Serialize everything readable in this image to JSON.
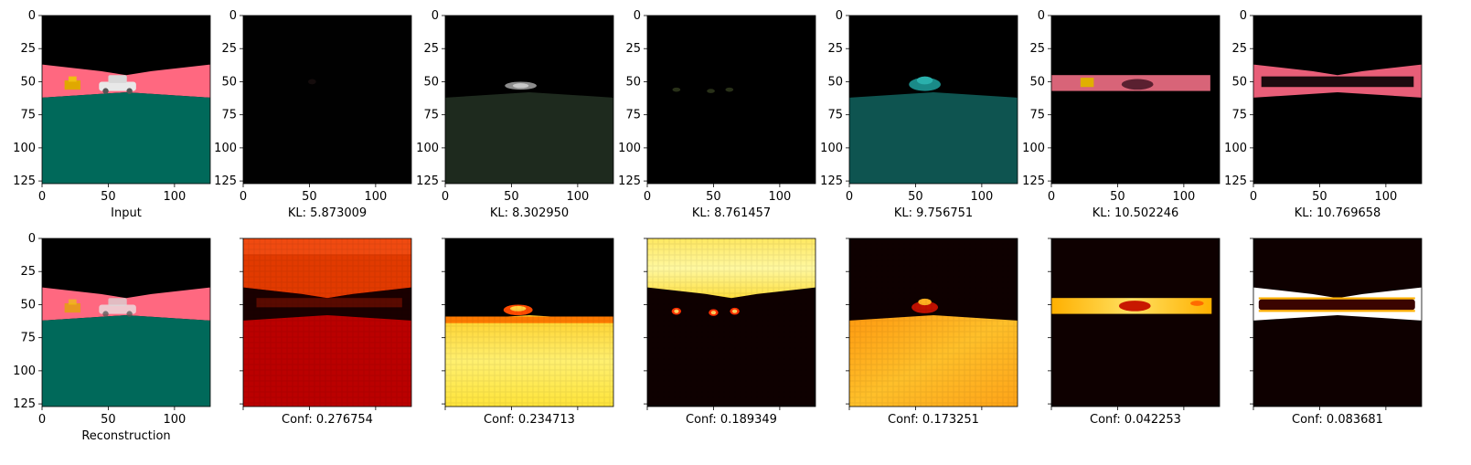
{
  "chart_data": {
    "type": "image-grid",
    "grid": {
      "rows": 2,
      "cols": 7
    },
    "axes": {
      "xlim": [
        0,
        127
      ],
      "ylim": [
        127,
        0
      ],
      "xticks": [
        0,
        50,
        100
      ],
      "yticks": [
        0,
        25,
        50,
        75,
        100,
        125
      ]
    },
    "panels": [
      {
        "row": 0,
        "col": 0,
        "caption": "Input",
        "image": "scene-input",
        "show_xtick_labels": true,
        "show_ytick_labels": true
      },
      {
        "row": 0,
        "col": 1,
        "caption": "KL: 5.873009",
        "image": "dark-component",
        "show_xtick_labels": true,
        "show_ytick_labels": true
      },
      {
        "row": 0,
        "col": 2,
        "caption": "KL: 8.302950",
        "image": "ground-component",
        "show_xtick_labels": true,
        "show_ytick_labels": true
      },
      {
        "row": 0,
        "col": 3,
        "caption": "KL: 8.761457",
        "image": "spots-component",
        "show_xtick_labels": true,
        "show_ytick_labels": true
      },
      {
        "row": 0,
        "col": 4,
        "caption": "KL: 9.756751",
        "image": "teal-component",
        "show_xtick_labels": true,
        "show_ytick_labels": true
      },
      {
        "row": 0,
        "col": 5,
        "caption": "KL: 10.502246",
        "image": "pink-band-component",
        "show_xtick_labels": true,
        "show_ytick_labels": true
      },
      {
        "row": 0,
        "col": 6,
        "caption": "KL: 10.769658",
        "image": "wedge-component",
        "show_xtick_labels": true,
        "show_ytick_labels": true
      },
      {
        "row": 1,
        "col": 0,
        "caption": "Reconstruction",
        "image": "scene-reconstruction",
        "show_xtick_labels": true,
        "show_ytick_labels": true
      },
      {
        "row": 1,
        "col": 1,
        "caption": "Conf: 0.276754",
        "image": "heat-red",
        "show_xtick_labels": false,
        "show_ytick_labels": false
      },
      {
        "row": 1,
        "col": 2,
        "caption": "Conf: 0.234713",
        "image": "heat-ground",
        "show_xtick_labels": false,
        "show_ytick_labels": false
      },
      {
        "row": 1,
        "col": 3,
        "caption": "Conf: 0.189349",
        "image": "heat-sky",
        "show_xtick_labels": false,
        "show_ytick_labels": false
      },
      {
        "row": 1,
        "col": 4,
        "caption": "Conf: 0.173251",
        "image": "heat-ground-orange",
        "show_xtick_labels": false,
        "show_ytick_labels": false
      },
      {
        "row": 1,
        "col": 5,
        "caption": "Conf: 0.042253",
        "image": "heat-band",
        "show_xtick_labels": false,
        "show_ytick_labels": false
      },
      {
        "row": 1,
        "col": 6,
        "caption": "Conf: 0.083681",
        "image": "heat-wedge",
        "show_xtick_labels": false,
        "show_ytick_labels": false
      }
    ],
    "colors": {
      "sky": "#000000",
      "horizon_band": "#ff6880",
      "ground": "#00695a",
      "heat_low": "#120000",
      "heat_mid": "#d11a00",
      "heat_high": "#ffff50",
      "teal": "#0e5450"
    }
  }
}
